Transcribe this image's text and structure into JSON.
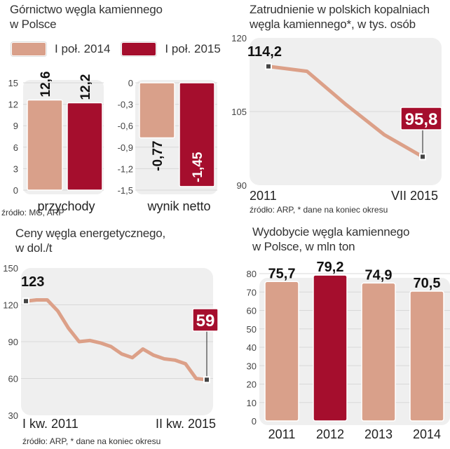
{
  "colors": {
    "light": "#d9a08a",
    "dark": "#a50e2d",
    "panel": "#efefef",
    "grid": "#d8d8d8",
    "line": "#dca088"
  },
  "chart_data": [
    {
      "id": "mining-finance",
      "type": "bar",
      "title": "Górnictwo węgla kamiennego w Polsce",
      "title_lines": [
        "Górnictwo węgla kamiennego",
        "w Polsce"
      ],
      "legend": [
        {
          "name": "I poł. 2014",
          "color": "#d9a08a"
        },
        {
          "name": "I poł. 2015",
          "color": "#a50e2d"
        }
      ],
      "legend_placement": "top",
      "source": "źródło: MG, ARP",
      "panels": [
        {
          "id": "revenue",
          "xlabel": "przychody",
          "ylim": [
            0,
            15
          ],
          "yticks": [
            0,
            3,
            6,
            9,
            12,
            15
          ],
          "ytick_labels": [
            "0",
            "3",
            "6",
            "9",
            "12",
            "15"
          ],
          "series": [
            {
              "name": "I poł. 2014",
              "value": 12.6,
              "label": "12,6"
            },
            {
              "name": "I poł. 2015",
              "value": 12.2,
              "label": "12,2"
            }
          ]
        },
        {
          "id": "net-result",
          "xlabel": "wynik netto",
          "ylim": [
            -1.5,
            0
          ],
          "yticks": [
            0,
            -0.3,
            -0.6,
            -0.9,
            -1.2,
            -1.5
          ],
          "ytick_labels": [
            "0",
            "-0,3",
            "-0,6",
            "-0,9",
            "-1,2",
            "-1,5"
          ],
          "series": [
            {
              "name": "I poł. 2014",
              "value": -0.77,
              "label": "-0,77"
            },
            {
              "name": "I poł. 2015",
              "value": -1.45,
              "label": "-1,45"
            }
          ]
        }
      ]
    },
    {
      "id": "employment",
      "type": "line",
      "title": "Zatrudnienie w polskich kopalniach węgla kamiennego*, w tys. osób",
      "title_lines": [
        "Zatrudnienie w polskich kopalniach",
        "węgla kamiennego*, w tys. osób"
      ],
      "xlabel": "",
      "ylabel": "",
      "x_tick_labels": [
        "2011",
        "VII 2015"
      ],
      "ylim": [
        90,
        120
      ],
      "yticks": [
        90,
        105,
        120
      ],
      "ytick_labels": [
        "90",
        "105",
        "120"
      ],
      "values": [
        114.2,
        113.2,
        106.5,
        100.3,
        95.8
      ],
      "start_label": "114,2",
      "end_label": "95,8",
      "grid": true,
      "source": "źródło: ARP, * dane na koniec okresu"
    },
    {
      "id": "coal-prices",
      "type": "line",
      "title": "Ceny węgla energetycznego, w dol./t",
      "title_lines": [
        "Ceny węgla energetycznego,",
        "w dol./t"
      ],
      "xlabel": "",
      "ylabel": "",
      "x_tick_labels": [
        "I kw. 2011",
        "II kw. 2015"
      ],
      "ylim": [
        30,
        150
      ],
      "yticks": [
        30,
        60,
        90,
        120,
        150
      ],
      "ytick_labels": [
        "30",
        "60",
        "90",
        "120",
        "150"
      ],
      "values": [
        123,
        124,
        124,
        115,
        101,
        90,
        91,
        89,
        86,
        80,
        77,
        84,
        79,
        76,
        75,
        72,
        60,
        59
      ],
      "start_label": "123",
      "end_label": "59",
      "grid": true,
      "source": "źródło: ARP, * dane na koniec okresu"
    },
    {
      "id": "coal-output",
      "type": "bar",
      "title": "Wydobycie węgla kamiennego w Polsce, w mln ton",
      "title_lines": [
        "Wydobycie węgla kamiennego",
        "w Polsce, w mln ton"
      ],
      "categories": [
        "2011",
        "2012",
        "2013",
        "2014"
      ],
      "values": [
        75.7,
        79.2,
        74.9,
        70.5
      ],
      "value_labels": [
        "75,7",
        "79,2",
        "74,9",
        "70,5"
      ],
      "highlight": [
        false,
        true,
        false,
        false
      ],
      "ylim": [
        0,
        80
      ],
      "yticks": [
        0,
        10,
        20,
        30,
        40,
        50,
        60,
        70,
        80
      ],
      "ytick_labels": [
        "0",
        "10",
        "20",
        "30",
        "40",
        "50",
        "60",
        "70",
        "80"
      ],
      "grid": true
    }
  ]
}
